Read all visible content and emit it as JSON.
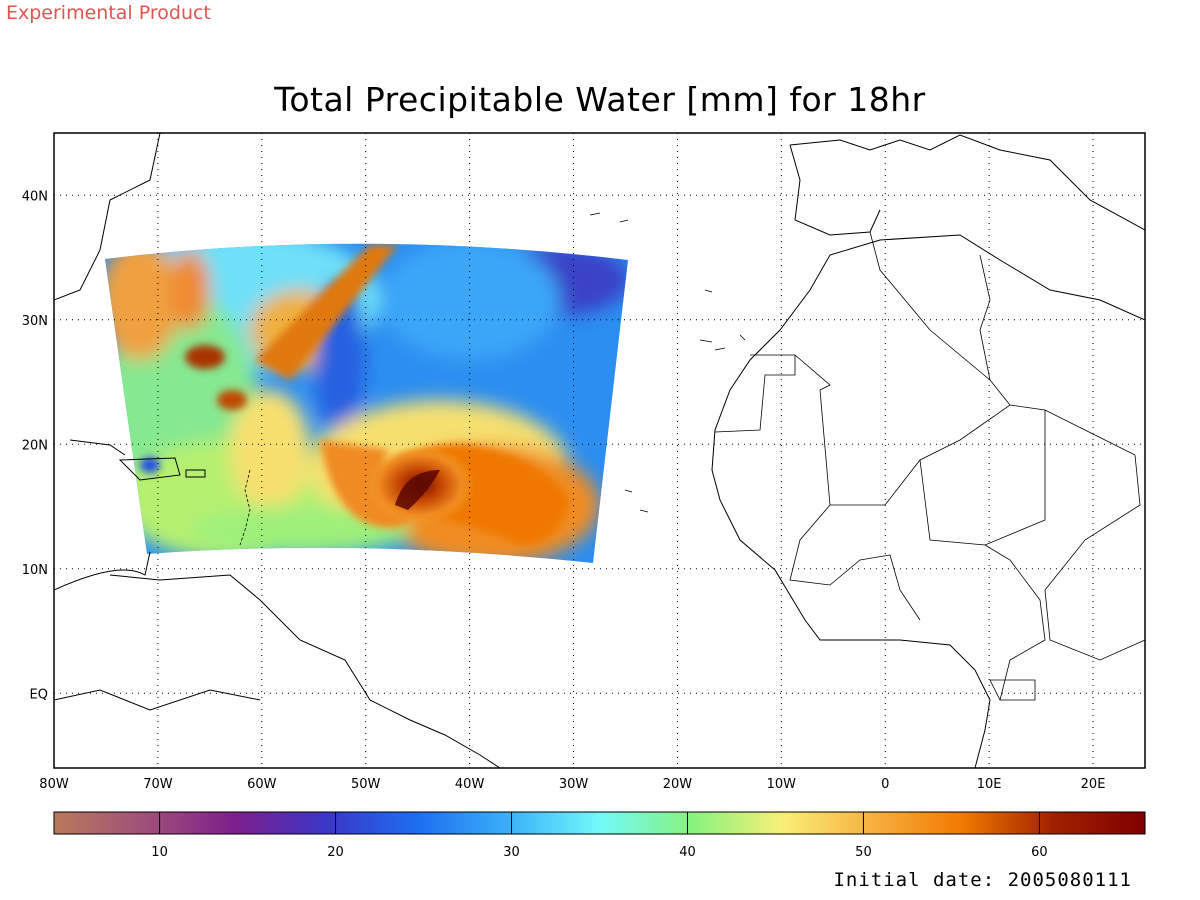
{
  "banner": "Experimental Product",
  "title": "Total Precipitable Water [mm] for 18hr",
  "footer": "Initial date: 2005080111",
  "map": {
    "lon_range": [
      -80,
      25
    ],
    "lat_range": [
      -6,
      45
    ],
    "lon_ticks": [
      {
        "lon": -80,
        "label": "80W"
      },
      {
        "lon": -70,
        "label": "70W"
      },
      {
        "lon": -60,
        "label": "60W"
      },
      {
        "lon": -50,
        "label": "50W"
      },
      {
        "lon": -40,
        "label": "40W"
      },
      {
        "lon": -30,
        "label": "30W"
      },
      {
        "lon": -20,
        "label": "20W"
      },
      {
        "lon": -10,
        "label": "10W"
      },
      {
        "lon": 0,
        "label": "0"
      },
      {
        "lon": 10,
        "label": "10E"
      },
      {
        "lon": 20,
        "label": "20E"
      }
    ],
    "lat_ticks": [
      {
        "lat": 40,
        "label": "40N"
      },
      {
        "lat": 30,
        "label": "30N"
      },
      {
        "lat": 20,
        "label": "20N"
      },
      {
        "lat": 10,
        "label": "10N"
      },
      {
        "lat": 0,
        "label": "EQ"
      }
    ],
    "grid": "dotted",
    "coastline_color": "#000000"
  },
  "colorbar": {
    "range": [
      4,
      66
    ],
    "tick_labels": [
      {
        "value": 10,
        "label": "10"
      },
      {
        "value": 20,
        "label": "20"
      },
      {
        "value": 30,
        "label": "30"
      },
      {
        "value": 40,
        "label": "40"
      },
      {
        "value": 50,
        "label": "50"
      },
      {
        "value": 60,
        "label": "60"
      }
    ],
    "colors": [
      "#b87a5a",
      "#a0507a",
      "#7c1e8c",
      "#3a36c8",
      "#1e6ef0",
      "#3ab0f8",
      "#72fafa",
      "#86f27e",
      "#f8f078",
      "#f8b040",
      "#f07800",
      "#a02000",
      "#800000"
    ]
  }
}
